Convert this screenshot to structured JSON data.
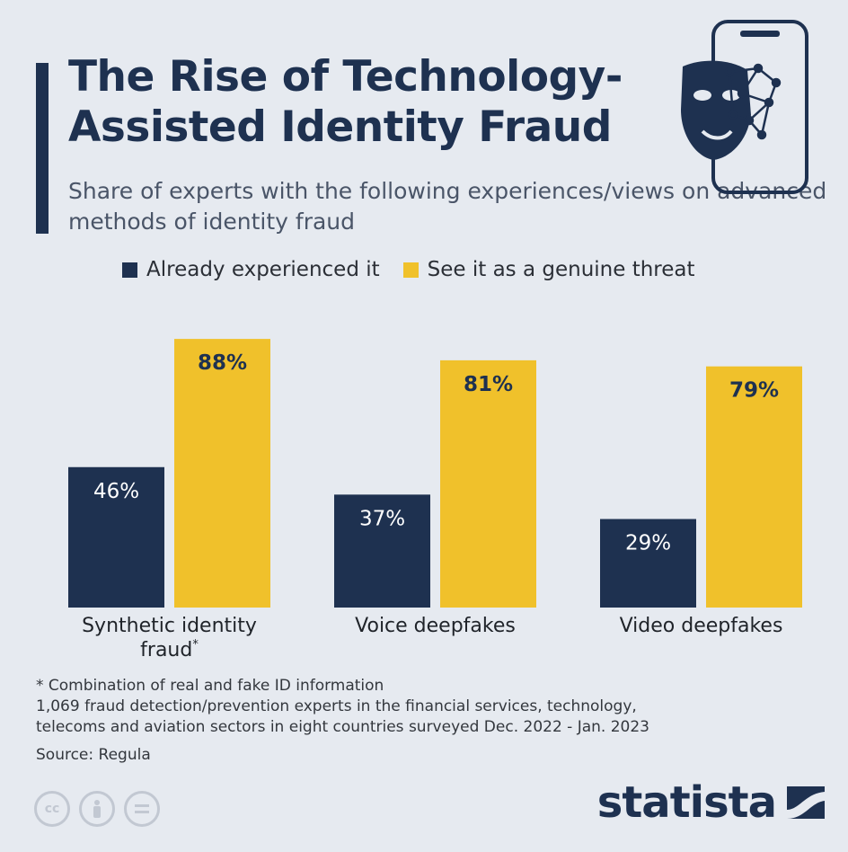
{
  "title": "The Rise of Technology-\nAssisted Identity Fraud",
  "subtitle": "Share of experts with the following experiences/views on advanced methods of identity fraud",
  "colors": {
    "experienced": "#1e3150",
    "threat": "#f0c12b",
    "background": "#e6eaf0"
  },
  "chart_data": {
    "type": "bar",
    "categories": [
      "Synthetic identity fraud*",
      "Voice deepfakes",
      "Video deepfakes"
    ],
    "series": [
      {
        "name": "Already experienced it",
        "values": [
          46,
          37,
          29
        ]
      },
      {
        "name": "See it as a genuine threat",
        "values": [
          88,
          81,
          79
        ]
      }
    ],
    "value_labels": [
      [
        "46%",
        "37%",
        "29%"
      ],
      [
        "88%",
        "81%",
        "79%"
      ]
    ],
    "ylim": [
      0,
      100
    ],
    "grid": false,
    "legend_position": "top"
  },
  "legend": {
    "experienced": "Already experienced it",
    "threat": "See it as a genuine threat"
  },
  "notes": {
    "footnote": "* Combination of real and fake ID information",
    "survey_line1": "1,069 fraud detection/prevention experts in the financial services, technology,",
    "survey_line2": "telecoms and aviation sectors in eight countries surveyed Dec. 2022 - Jan. 2023",
    "source": "Source: Regula"
  },
  "brand": "statista",
  "icons": [
    "mask-icon",
    "smartphone-icon",
    "face-mesh-icon",
    "cc-icon",
    "attribution-icon",
    "no-derivatives-icon",
    "statista-logo-icon"
  ]
}
